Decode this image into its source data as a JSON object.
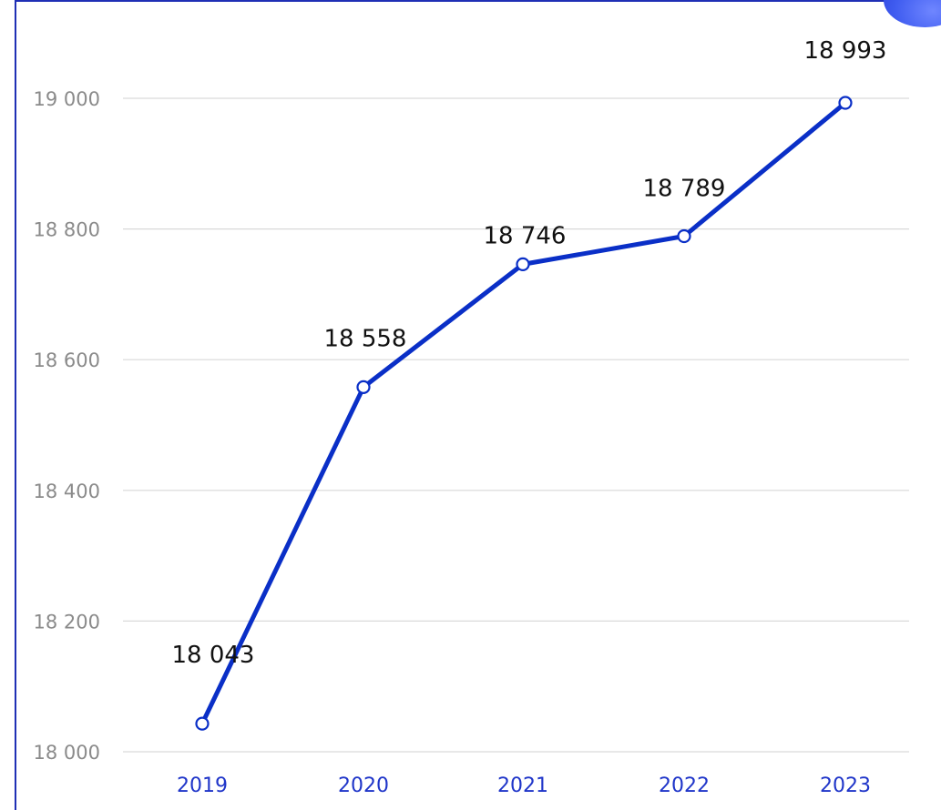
{
  "chart_data": {
    "type": "line",
    "title": "",
    "xlabel": "",
    "ylabel": "",
    "categories": [
      "2019",
      "2020",
      "2021",
      "2022",
      "2023"
    ],
    "series": [
      {
        "values": [
          18043,
          18558,
          18746,
          18789,
          18993
        ],
        "labels": [
          "18 043",
          "18 558",
          "18 746",
          "18 789",
          "18 993"
        ],
        "color": "#0a2fc7"
      }
    ],
    "yticks": [
      {
        "value": 18000,
        "label": "18 000"
      },
      {
        "value": 18200,
        "label": "18 200"
      },
      {
        "value": 18400,
        "label": "18 400"
      },
      {
        "value": 18600,
        "label": "18 600"
      },
      {
        "value": 18800,
        "label": "18 800"
      },
      {
        "value": 19000,
        "label": "19 000"
      }
    ],
    "ylim": [
      18000,
      19000
    ],
    "grid": true,
    "legend": "none"
  },
  "colors": {
    "accent": "#1f2fb5",
    "x_tick": "#1f35c9",
    "y_tick": "#8a8a8a",
    "grid": "#d9d9d9"
  }
}
